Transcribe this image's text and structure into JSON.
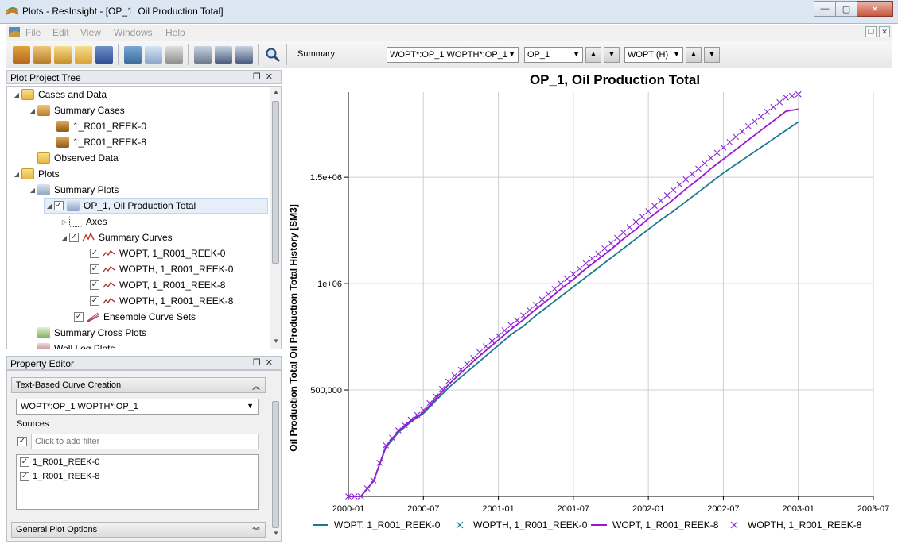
{
  "window": {
    "title": "Plots - ResInsight - [OP_1, Oil Production Total]"
  },
  "menu": [
    "File",
    "Edit",
    "View",
    "Windows",
    "Help"
  ],
  "toolbar": {
    "summary_label": "Summary",
    "summary_combo": "WOPT*:OP_1 WOPTH*:OP_1",
    "well_combo": "OP_1",
    "vector_combo": "WOPT (H)"
  },
  "tree": {
    "header": "Plot Project Tree",
    "items": [
      {
        "label": "Cases and Data"
      },
      {
        "label": "Summary Cases"
      },
      {
        "label": "1_R001_REEK-0"
      },
      {
        "label": "1_R001_REEK-8"
      },
      {
        "label": "Observed Data"
      },
      {
        "label": "Plots"
      },
      {
        "label": "Summary Plots"
      },
      {
        "label": "OP_1, Oil Production Total"
      },
      {
        "label": "Axes"
      },
      {
        "label": "Summary Curves"
      },
      {
        "label": "WOPT, 1_R001_REEK-0"
      },
      {
        "label": "WOPTH, 1_R001_REEK-0"
      },
      {
        "label": "WOPT, 1_R001_REEK-8"
      },
      {
        "label": "WOPTH, 1_R001_REEK-8"
      },
      {
        "label": "Ensemble Curve Sets"
      },
      {
        "label": "Summary Cross Plots"
      },
      {
        "label": "Well Log Plots"
      }
    ]
  },
  "property_editor": {
    "header": "Property Editor",
    "group_text": "Text-Based Curve Creation",
    "curve_expression": "WOPT*:OP_1 WOPTH*:OP_1",
    "sources_label": "Sources",
    "filter_placeholder": "Click to add filter",
    "sources": [
      "1_R001_REEK-0",
      "1_R001_REEK-8"
    ],
    "group_general": "General Plot Options"
  },
  "chart_data": {
    "type": "line",
    "title": "OP_1, Oil Production Total",
    "xlabel": "",
    "ylabel": "Oil Production Total Oil Production Total History  [SM3]",
    "x_ticks": [
      "2000-01",
      "2000-07",
      "2001-01",
      "2001-07",
      "2002-01",
      "2002-07",
      "2003-01",
      "2003-07"
    ],
    "y_ticks": [
      "500,000",
      "1e+06",
      "1.5e+06"
    ],
    "xlim": [
      0,
      42
    ],
    "ylim": [
      0,
      1900000
    ],
    "grid": true,
    "legend_position": "bottom",
    "x_months": [
      0,
      1,
      2,
      3,
      4,
      5,
      6,
      7,
      8,
      9,
      10,
      11,
      12,
      13,
      14,
      15,
      16,
      17,
      18,
      19,
      20,
      21,
      22,
      23,
      24,
      25,
      26,
      27,
      28,
      29,
      30,
      31,
      32,
      33,
      34,
      35,
      36
    ],
    "series": [
      {
        "name": "WOPT, 1_R001_REEK-0",
        "color": "#1b7a8a",
        "style": "line",
        "values": [
          0,
          0,
          70000,
          230000,
          300000,
          350000,
          390000,
          450000,
          510000,
          560000,
          610000,
          660000,
          710000,
          760000,
          800000,
          850000,
          895000,
          940000,
          985000,
          1030000,
          1075000,
          1120000,
          1165000,
          1210000,
          1255000,
          1300000,
          1340000,
          1385000,
          1430000,
          1475000,
          1520000,
          1560000,
          1600000,
          1640000,
          1680000,
          1720000,
          1760000
        ]
      },
      {
        "name": "WOPTH, 1_R001_REEK-0",
        "color": "#1b7a8a",
        "style": "x",
        "values": []
      },
      {
        "name": "WOPT, 1_R001_REEK-8",
        "color": "#9a17d6",
        "style": "line",
        "values": [
          0,
          0,
          70000,
          235000,
          305000,
          355000,
          395000,
          460000,
          525000,
          580000,
          635000,
          685000,
          735000,
          785000,
          830000,
          880000,
          925000,
          975000,
          1020000,
          1070000,
          1115000,
          1160000,
          1210000,
          1255000,
          1305000,
          1350000,
          1395000,
          1445000,
          1490000,
          1540000,
          1585000,
          1630000,
          1675000,
          1720000,
          1765000,
          1810000,
          1820000
        ]
      },
      {
        "name": "WOPTH, 1_R001_REEK-8",
        "color": "#8a2bd6",
        "style": "x",
        "values": [
          0,
          0,
          75000,
          240000,
          310000,
          360000,
          405000,
          470000,
          540000,
          595000,
          650000,
          705000,
          755000,
          805000,
          850000,
          900000,
          950000,
          1000000,
          1045000,
          1095000,
          1140000,
          1190000,
          1240000,
          1290000,
          1340000,
          1390000,
          1440000,
          1490000,
          1540000,
          1590000,
          1640000,
          1690000,
          1740000,
          1785000,
          1830000,
          1875000,
          1890000
        ]
      }
    ]
  }
}
